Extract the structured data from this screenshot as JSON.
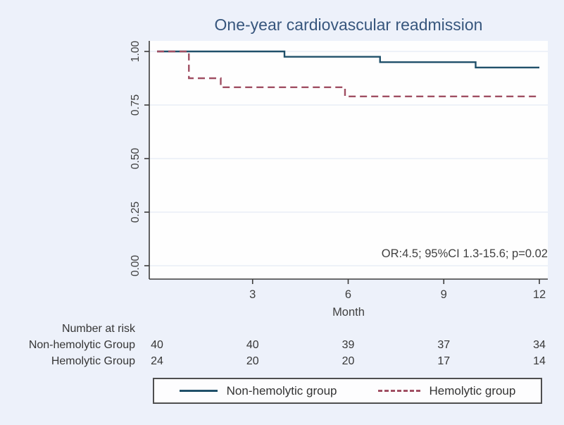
{
  "title": "One-year cardiovascular readmission",
  "colors": {
    "background": "#edf1fa",
    "plot_background": "#fefefe",
    "title_text": "#37567d",
    "axis": "#3c3c3c",
    "tick_text": "#404040",
    "gridline": "#e8edf6",
    "non_hemolytic_line": "#20506a",
    "hemolytic_line": "#a04f63",
    "legend_border": "#4f4f4f",
    "risk_text": "#363636"
  },
  "chart_data": {
    "type": "line",
    "subtype": "kaplan-meier-step",
    "title": "One-year cardiovascular readmission",
    "xlabel": "Month",
    "ylabel": "",
    "xlim": [
      0,
      12
    ],
    "ylim": [
      0.0,
      1.0
    ],
    "xticks": [
      3,
      6,
      9,
      12
    ],
    "yticks": [
      0.0,
      0.25,
      0.5,
      0.75,
      1.0
    ],
    "ytick_labels": [
      "0.00",
      "0.25",
      "0.50",
      "0.75",
      "1.00"
    ],
    "grid": "horizontal",
    "legend_position": "bottom-outside-boxed",
    "annotation": "OR:4.5; 95%CI 1.3-15.6; p=0.02",
    "series": [
      {
        "name": "Non-hemolytic group",
        "style": "solid",
        "color": "#20506a",
        "x": [
          0,
          4,
          4,
          7,
          7,
          10,
          10,
          12
        ],
        "y": [
          1.0,
          1.0,
          0.975,
          0.975,
          0.95,
          0.95,
          0.925,
          0.925
        ]
      },
      {
        "name": "Hemolytic group",
        "style": "dashed",
        "color": "#a04f63",
        "x": [
          0,
          1,
          1,
          2,
          2,
          5.9,
          5.9,
          12
        ],
        "y": [
          1.0,
          1.0,
          0.875,
          0.875,
          0.833,
          0.833,
          0.79,
          0.79
        ]
      }
    ]
  },
  "risk_table": {
    "header": "Number at risk",
    "months": [
      0,
      3,
      6,
      9,
      12
    ],
    "rows": [
      {
        "label": "Non-hemolytic Group",
        "values": [
          "40",
          "40",
          "39",
          "37",
          "34"
        ]
      },
      {
        "label": "Hemolytic Group",
        "values": [
          "24",
          "20",
          "20",
          "17",
          "14"
        ]
      }
    ]
  },
  "legend": {
    "items": [
      {
        "label": "Non-hemolytic group",
        "style": "solid",
        "color": "#20506a"
      },
      {
        "label": "Hemolytic group",
        "style": "dashed",
        "color": "#a04f63"
      }
    ]
  }
}
